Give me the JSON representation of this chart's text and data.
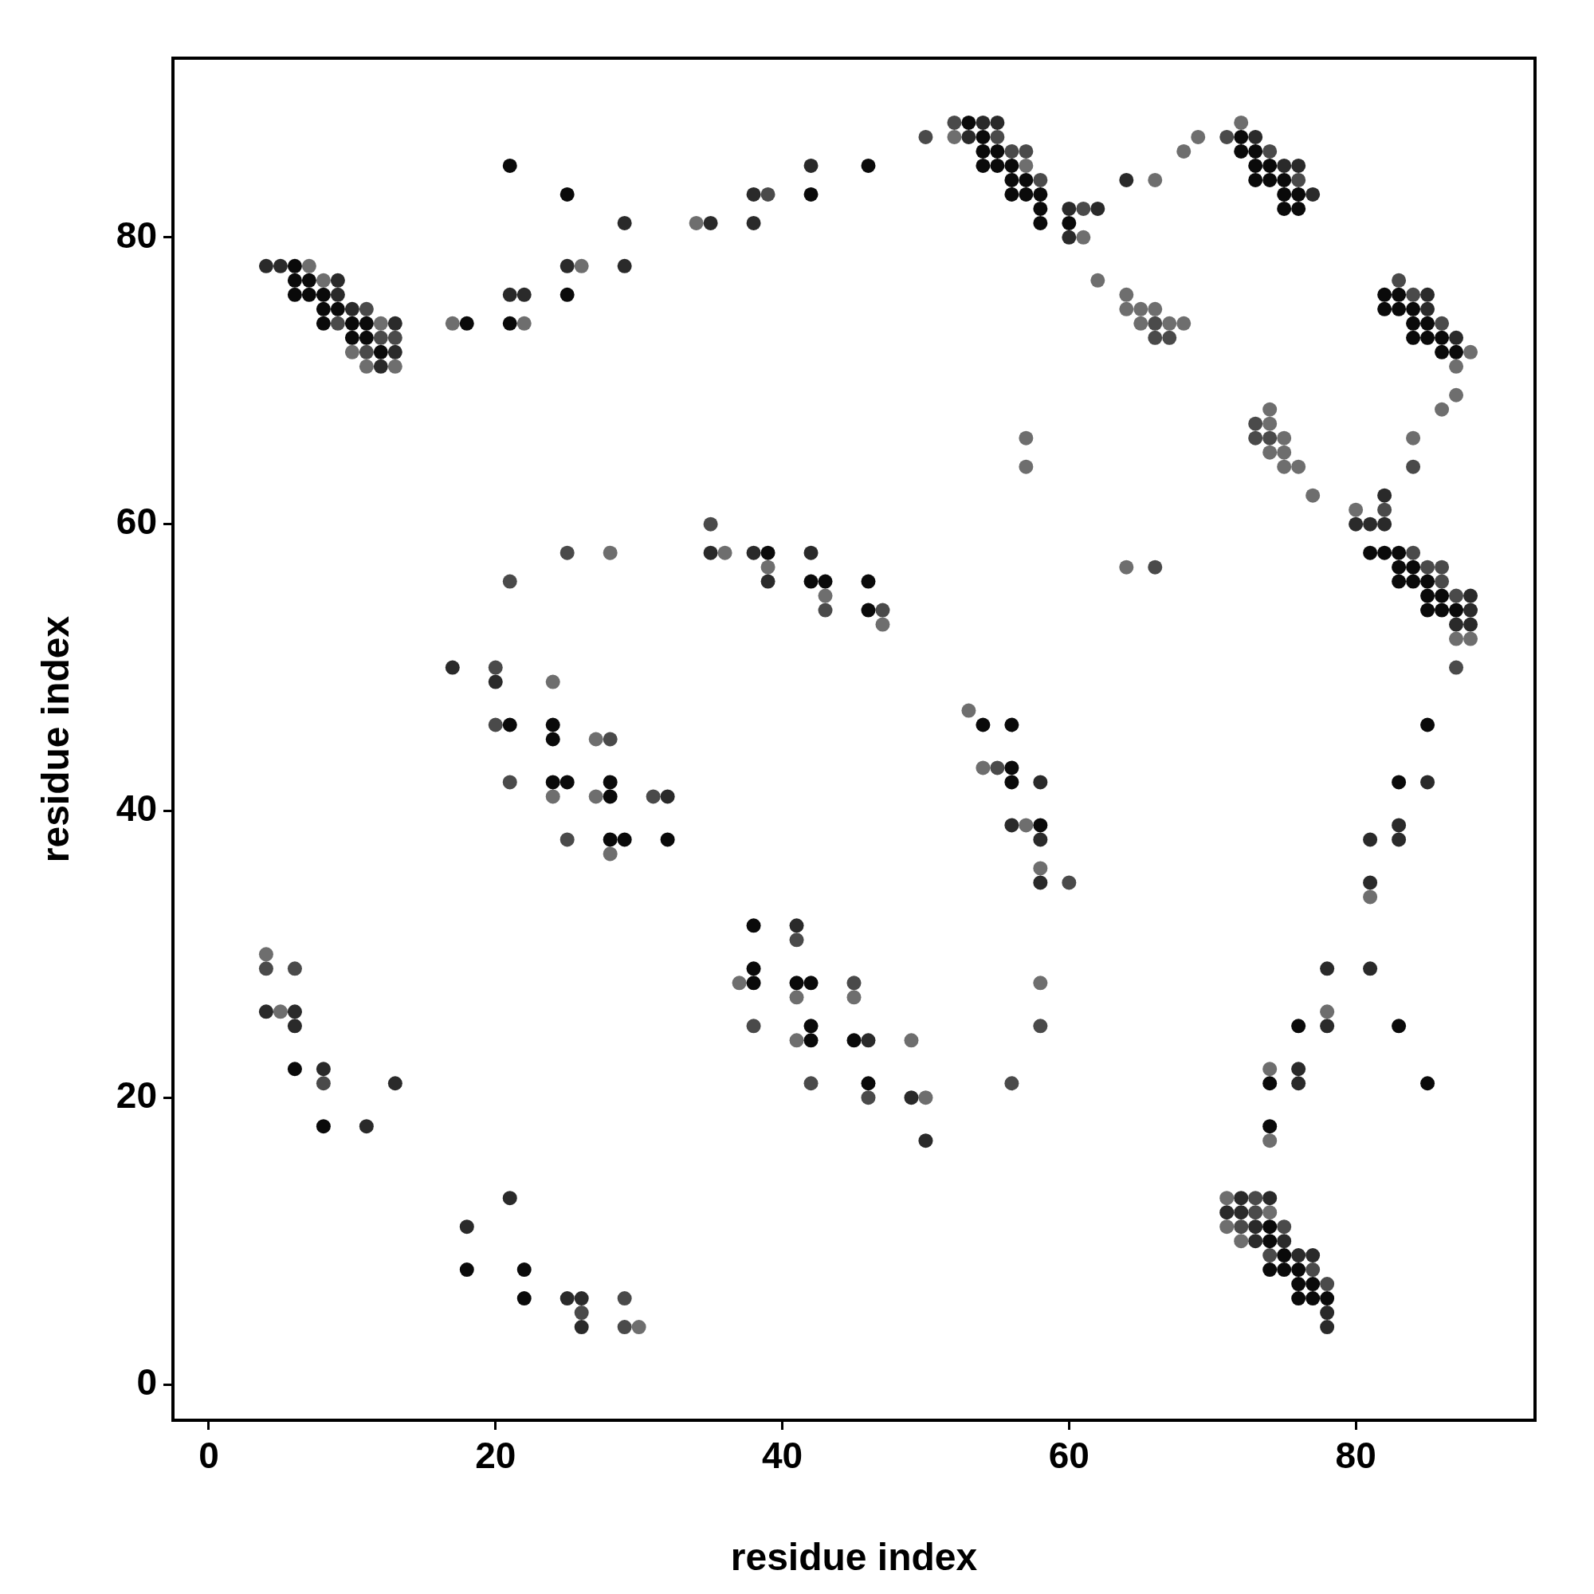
{
  "chart_data": {
    "type": "scatter",
    "xlabel": "residue index",
    "ylabel": "residue index",
    "xlim": [
      -2.5,
      92.5
    ],
    "ylim": [
      -2.5,
      92.5
    ],
    "xticks": [
      0,
      20,
      40,
      60,
      80
    ],
    "yticks": [
      0,
      20,
      40,
      60,
      80
    ],
    "grid": false,
    "legend": false,
    "marker": "circle",
    "series": [
      {
        "color": "#0a0a0a",
        "x": [
          6,
          6,
          7,
          6,
          7,
          8,
          8,
          9,
          8,
          10,
          11,
          10,
          11,
          12,
          18,
          21,
          25,
          25,
          21,
          42,
          46,
          53,
          54,
          54,
          55,
          54,
          55,
          56,
          56,
          57,
          56,
          57,
          58,
          58,
          58,
          60,
          72,
          72,
          73,
          73,
          74,
          73,
          74,
          75,
          75,
          76,
          75,
          76,
          82,
          83,
          82,
          83,
          84,
          84,
          85,
          84,
          85,
          86,
          86,
          87,
          39,
          42,
          43,
          46,
          46,
          81,
          82,
          83,
          83,
          84,
          83,
          84,
          85,
          85,
          86,
          85,
          86,
          87,
          85,
          21,
          24,
          24,
          24,
          25,
          28,
          28,
          28,
          29,
          32,
          6,
          8,
          18,
          22,
          22,
          56,
          56,
          58,
          38,
          38,
          38,
          41,
          42,
          42,
          42,
          45,
          46,
          83,
          76,
          83,
          74,
          85,
          74,
          74,
          74,
          75,
          74,
          75,
          76,
          76,
          77,
          76,
          77,
          78,
          54,
          56
        ],
        "values": [
          78,
          77,
          77,
          76,
          76,
          76,
          75,
          75,
          74,
          74,
          74,
          73,
          73,
          72,
          74,
          85,
          83,
          76,
          74,
          83,
          85,
          88,
          87,
          86,
          86,
          85,
          85,
          85,
          84,
          84,
          83,
          83,
          83,
          82,
          81,
          81,
          87,
          86,
          86,
          85,
          85,
          84,
          84,
          84,
          83,
          83,
          82,
          82,
          76,
          76,
          75,
          75,
          75,
          74,
          74,
          73,
          73,
          73,
          72,
          72,
          58,
          56,
          56,
          56,
          54,
          58,
          58,
          58,
          57,
          57,
          56,
          56,
          56,
          55,
          55,
          54,
          54,
          54,
          46,
          46,
          46,
          45,
          42,
          42,
          42,
          41,
          38,
          38,
          38,
          22,
          18,
          8,
          8,
          6,
          43,
          42,
          39,
          32,
          29,
          28,
          28,
          28,
          25,
          24,
          24,
          21,
          42,
          25,
          25,
          21,
          21,
          18,
          11,
          10,
          9,
          8,
          8,
          8,
          7,
          7,
          6,
          6,
          6,
          46,
          46
        ]
      },
      {
        "color": "#2a2a2a",
        "x": [
          4,
          5,
          9,
          9,
          10,
          13,
          13,
          12,
          29,
          25,
          29,
          21,
          22,
          42,
          38,
          38,
          35,
          54,
          55,
          53,
          60,
          62,
          60,
          73,
          75,
          76,
          64,
          77,
          85,
          85,
          87,
          35,
          38,
          42,
          39,
          82,
          80,
          81,
          82,
          88,
          88,
          87,
          88,
          17,
          20,
          8,
          13,
          11,
          21,
          18,
          25,
          26,
          26,
          4,
          6,
          6,
          32,
          58,
          56,
          58,
          58,
          41,
          46,
          49,
          50,
          85,
          83,
          81,
          83,
          81,
          78,
          81,
          78,
          76,
          76,
          72,
          74,
          71,
          72,
          73,
          73,
          75,
          76,
          77,
          78,
          78
        ],
        "values": [
          78,
          78,
          77,
          76,
          75,
          74,
          72,
          71,
          81,
          78,
          78,
          76,
          76,
          85,
          83,
          81,
          81,
          88,
          88,
          87,
          82,
          82,
          80,
          87,
          85,
          85,
          84,
          83,
          76,
          75,
          73,
          58,
          58,
          58,
          56,
          62,
          60,
          60,
          60,
          55,
          54,
          53,
          53,
          50,
          49,
          22,
          21,
          18,
          13,
          11,
          6,
          6,
          4,
          26,
          26,
          25,
          41,
          42,
          39,
          38,
          35,
          32,
          24,
          20,
          17,
          42,
          39,
          38,
          38,
          35,
          29,
          29,
          25,
          22,
          21,
          13,
          13,
          12,
          12,
          11,
          10,
          10,
          9,
          9,
          5,
          4
        ]
      },
      {
        "color": "#4a4a4a",
        "x": [
          11,
          9,
          12,
          13,
          11,
          50,
          52,
          55,
          56,
          57,
          58,
          39,
          61,
          71,
          74,
          76,
          83,
          84,
          86,
          66,
          66,
          67,
          73,
          73,
          74,
          84,
          82,
          84,
          85,
          86,
          86,
          87,
          87,
          66,
          35,
          43,
          47,
          25,
          21,
          20,
          28,
          21,
          25,
          20,
          4,
          6,
          8,
          26,
          29,
          29,
          55,
          31,
          60,
          41,
          45,
          38,
          58,
          42,
          56,
          46,
          73,
          73,
          72,
          75,
          74,
          77,
          78
        ],
        "values": [
          75,
          74,
          73,
          73,
          72,
          87,
          88,
          87,
          86,
          86,
          84,
          83,
          82,
          87,
          86,
          84,
          77,
          76,
          74,
          74,
          73,
          73,
          67,
          66,
          66,
          64,
          61,
          58,
          57,
          57,
          56,
          55,
          50,
          57,
          60,
          54,
          54,
          58,
          56,
          46,
          45,
          42,
          38,
          50,
          29,
          29,
          21,
          5,
          6,
          4,
          43,
          41,
          35,
          31,
          28,
          25,
          25,
          21,
          21,
          20,
          13,
          12,
          11,
          11,
          9,
          8,
          7
        ]
      },
      {
        "color": "#6e6e6e",
        "x": [
          7,
          8,
          12,
          10,
          11,
          13,
          17,
          26,
          22,
          52,
          57,
          34,
          61,
          72,
          69,
          68,
          66,
          62,
          64,
          64,
          65,
          66,
          65,
          67,
          68,
          88,
          87,
          87,
          86,
          74,
          74,
          75,
          84,
          74,
          75,
          75,
          76,
          77,
          80,
          64,
          88,
          87,
          57,
          57,
          36,
          39,
          43,
          47,
          53,
          28,
          24,
          27,
          24,
          27,
          28,
          4,
          5,
          54,
          57,
          58,
          37,
          58,
          41,
          45,
          41,
          49,
          50,
          30,
          81,
          78,
          74,
          74,
          71,
          74,
          71,
          72
        ],
        "values": [
          78,
          77,
          74,
          72,
          71,
          71,
          74,
          78,
          74,
          87,
          85,
          81,
          80,
          88,
          87,
          86,
          84,
          77,
          76,
          75,
          75,
          75,
          74,
          74,
          74,
          72,
          71,
          69,
          68,
          68,
          67,
          66,
          66,
          65,
          65,
          64,
          64,
          62,
          61,
          57,
          52,
          52,
          66,
          64,
          58,
          57,
          55,
          53,
          47,
          58,
          49,
          45,
          41,
          41,
          37,
          30,
          26,
          43,
          39,
          36,
          28,
          28,
          27,
          27,
          24,
          24,
          20,
          4,
          34,
          26,
          22,
          17,
          13,
          12,
          11,
          10
        ]
      }
    ]
  }
}
